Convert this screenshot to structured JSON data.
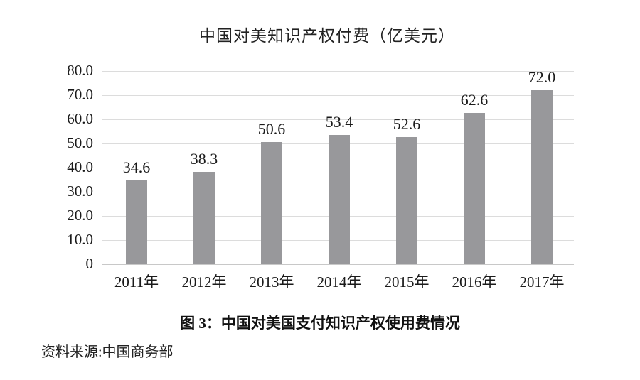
{
  "figure": {
    "caption": "图 3：中国对美国支付知识产权使用费情况",
    "source": "资料来源:中国商务部"
  },
  "chart_data": {
    "type": "bar",
    "title": "中国对美知识产权付费（亿美元）",
    "categories": [
      "2011年",
      "2012年",
      "2013年",
      "2014年",
      "2015年",
      "2016年",
      "2017年"
    ],
    "values": [
      34.6,
      38.3,
      50.6,
      53.4,
      52.6,
      62.6,
      72.0
    ],
    "data_labels": [
      "34.6",
      "38.3",
      "50.6",
      "53.4",
      "52.6",
      "62.6",
      "72.0"
    ],
    "xlabel": "",
    "ylabel": "",
    "ylim": [
      0,
      80
    ],
    "yticks": [
      80,
      70,
      60,
      50,
      40,
      30,
      20,
      10,
      0
    ],
    "ytick_labels": [
      "80.0",
      "70.0",
      "60.0",
      "50.0",
      "40.0",
      "30.0",
      "20.0",
      "10.0",
      "0"
    ],
    "grid": true,
    "legend_position": "none",
    "bar_color": "#98989b",
    "gridline_color": "#dcdcdc",
    "baseline_color": "#c8c8c8"
  }
}
